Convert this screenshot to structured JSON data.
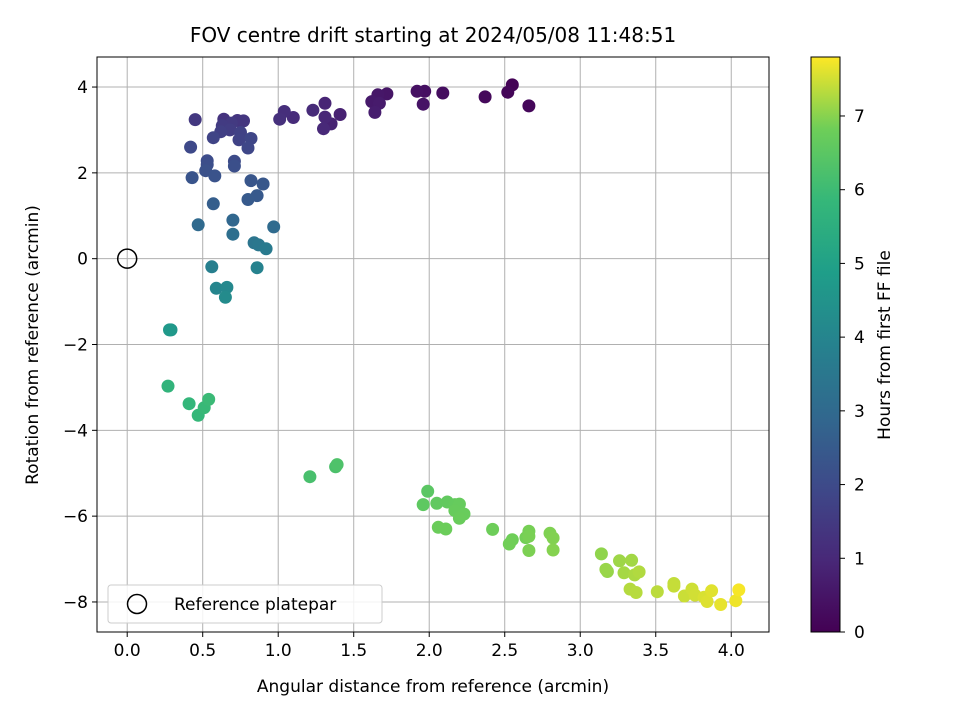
{
  "chart_data": {
    "type": "scatter",
    "title": "FOV centre drift starting at 2024/05/08 11:48:51",
    "xlabel": "Angular distance from reference (arcmin)",
    "ylabel": "Rotation from reference (arcmin)",
    "xlim": [
      -0.2,
      4.25
    ],
    "ylim": [
      -8.7,
      4.7
    ],
    "xticks": [
      0.0,
      0.5,
      1.0,
      1.5,
      2.0,
      2.5,
      3.0,
      3.5,
      4.0
    ],
    "xtick_labels": [
      "0.0",
      "0.5",
      "1.0",
      "1.5",
      "2.0",
      "2.5",
      "3.0",
      "3.5",
      "4.0"
    ],
    "yticks": [
      4,
      2,
      0,
      -2,
      -4,
      -6,
      -8
    ],
    "ytick_labels": [
      "4",
      "2",
      "0",
      "−2",
      "−4",
      "−6",
      "−8"
    ],
    "grid": true,
    "legend_position": "lower-left",
    "legend_label": "Reference platepar",
    "reference_point": [
      0,
      0
    ],
    "colormap": "viridis",
    "colorbar": {
      "label": "Hours from first FF file",
      "range": [
        0,
        7.8
      ],
      "ticks": [
        0,
        1,
        2,
        3,
        4,
        5,
        6,
        7
      ],
      "tick_labels": [
        "0",
        "1",
        "2",
        "3",
        "4",
        "5",
        "6",
        "7"
      ]
    },
    "points": [
      [
        2.55,
        4.05,
        0.05
      ],
      [
        2.52,
        3.88,
        0.12
      ],
      [
        2.66,
        3.56,
        0.15
      ],
      [
        2.37,
        3.77,
        0.2
      ],
      [
        2.09,
        3.86,
        0.3
      ],
      [
        1.97,
        3.9,
        0.35
      ],
      [
        1.92,
        3.9,
        0.4
      ],
      [
        1.96,
        3.6,
        0.45
      ],
      [
        1.72,
        3.84,
        0.5
      ],
      [
        1.66,
        3.82,
        0.55
      ],
      [
        1.62,
        3.66,
        0.6
      ],
      [
        1.67,
        3.62,
        0.65
      ],
      [
        1.64,
        3.41,
        0.7
      ],
      [
        1.41,
        3.36,
        0.8
      ],
      [
        1.35,
        3.14,
        0.85
      ],
      [
        1.31,
        3.62,
        0.9
      ],
      [
        1.31,
        3.3,
        0.95
      ],
      [
        1.3,
        3.03,
        1.0
      ],
      [
        1.23,
        3.46,
        1.05
      ],
      [
        1.1,
        3.29,
        1.1
      ],
      [
        1.04,
        3.43,
        1.15
      ],
      [
        1.01,
        3.25,
        1.2
      ],
      [
        0.64,
        3.25,
        1.3
      ],
      [
        0.73,
        3.22,
        1.35
      ],
      [
        0.77,
        3.21,
        1.4
      ],
      [
        0.45,
        3.24,
        1.45
      ],
      [
        0.69,
        3.16,
        1.5
      ],
      [
        0.63,
        3.1,
        1.55
      ],
      [
        0.68,
        3.0,
        1.6
      ],
      [
        0.62,
        2.96,
        1.65
      ],
      [
        0.75,
        2.94,
        1.7
      ],
      [
        0.74,
        2.77,
        1.75
      ],
      [
        0.57,
        2.82,
        1.8
      ],
      [
        0.82,
        2.8,
        1.85
      ],
      [
        0.8,
        2.58,
        1.9
      ],
      [
        0.42,
        2.6,
        1.95
      ],
      [
        0.71,
        2.27,
        2.0
      ],
      [
        0.53,
        2.28,
        2.05
      ],
      [
        0.53,
        2.19,
        2.1
      ],
      [
        0.71,
        2.16,
        2.15
      ],
      [
        0.52,
        2.05,
        2.2
      ],
      [
        0.58,
        1.93,
        2.25
      ],
      [
        0.43,
        1.89,
        2.3
      ],
      [
        0.82,
        1.82,
        2.35
      ],
      [
        0.9,
        1.74,
        2.4
      ],
      [
        0.86,
        1.47,
        2.45
      ],
      [
        0.8,
        1.38,
        2.5
      ],
      [
        0.57,
        1.28,
        2.6
      ],
      [
        0.7,
        0.9,
        2.9
      ],
      [
        0.47,
        0.79,
        3.0
      ],
      [
        0.97,
        0.74,
        3.05
      ],
      [
        0.7,
        0.57,
        3.2
      ],
      [
        0.84,
        0.37,
        3.4
      ],
      [
        0.87,
        0.32,
        3.5
      ],
      [
        0.92,
        0.23,
        3.6
      ],
      [
        0.56,
        -0.19,
        3.8
      ],
      [
        0.86,
        -0.21,
        3.9
      ],
      [
        0.59,
        -0.69,
        4.0
      ],
      [
        0.66,
        -0.67,
        4.1
      ],
      [
        0.65,
        -0.9,
        4.2
      ],
      [
        0.29,
        -1.66,
        4.6
      ],
      [
        0.28,
        -1.66,
        4.7
      ],
      [
        0.27,
        -2.97,
        5.7
      ],
      [
        0.41,
        -3.38,
        5.8
      ],
      [
        0.47,
        -3.65,
        5.85
      ],
      [
        0.51,
        -3.47,
        5.9
      ],
      [
        0.54,
        -3.28,
        5.95
      ],
      [
        1.21,
        -5.08,
        6.2
      ],
      [
        1.38,
        -4.85,
        6.25
      ],
      [
        1.39,
        -4.8,
        6.3
      ],
      [
        1.99,
        -5.42,
        6.5
      ],
      [
        1.96,
        -5.73,
        6.55
      ],
      [
        2.05,
        -5.7,
        6.6
      ],
      [
        2.12,
        -5.67,
        6.62
      ],
      [
        2.17,
        -5.73,
        6.65
      ],
      [
        2.2,
        -5.72,
        6.68
      ],
      [
        2.17,
        -5.87,
        6.7
      ],
      [
        2.23,
        -5.95,
        6.72
      ],
      [
        2.2,
        -6.05,
        6.74
      ],
      [
        2.06,
        -6.26,
        6.76
      ],
      [
        2.11,
        -6.3,
        6.78
      ],
      [
        2.42,
        -6.31,
        6.8
      ],
      [
        2.55,
        -6.55,
        6.82
      ],
      [
        2.53,
        -6.65,
        6.84
      ],
      [
        2.64,
        -6.5,
        6.86
      ],
      [
        2.66,
        -6.35,
        6.88
      ],
      [
        2.66,
        -6.47,
        6.9
      ],
      [
        2.66,
        -6.8,
        6.92
      ],
      [
        2.8,
        -6.4,
        6.94
      ],
      [
        2.82,
        -6.51,
        6.96
      ],
      [
        2.82,
        -6.79,
        6.98
      ],
      [
        3.14,
        -6.88,
        7.05
      ],
      [
        3.18,
        -7.29,
        7.1
      ],
      [
        3.17,
        -7.24,
        7.12
      ],
      [
        3.26,
        -7.04,
        7.15
      ],
      [
        3.34,
        -7.03,
        7.18
      ],
      [
        3.29,
        -7.32,
        7.2
      ],
      [
        3.36,
        -7.37,
        7.25
      ],
      [
        3.39,
        -7.3,
        7.28
      ],
      [
        3.33,
        -7.7,
        7.3
      ],
      [
        3.37,
        -7.78,
        7.32
      ],
      [
        3.51,
        -7.76,
        7.35
      ],
      [
        3.62,
        -7.57,
        7.4
      ],
      [
        3.62,
        -7.63,
        7.42
      ],
      [
        3.69,
        -7.86,
        7.45
      ],
      [
        3.74,
        -7.7,
        7.48
      ],
      [
        3.76,
        -7.84,
        7.5
      ],
      [
        3.82,
        -7.89,
        7.55
      ],
      [
        3.84,
        -7.99,
        7.58
      ],
      [
        3.87,
        -7.74,
        7.6
      ],
      [
        3.93,
        -8.06,
        7.65
      ],
      [
        4.03,
        -7.97,
        7.7
      ],
      [
        4.05,
        -7.72,
        7.75
      ]
    ]
  }
}
